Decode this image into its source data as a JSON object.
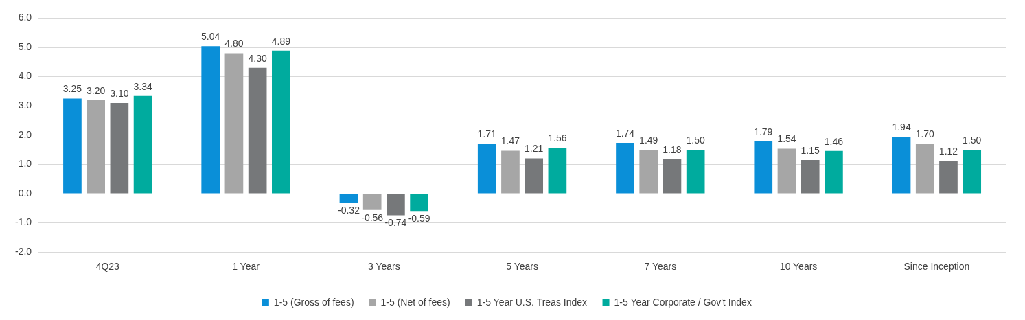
{
  "chart_data": {
    "type": "bar",
    "categories": [
      "4Q23",
      "1 Year",
      "3 Years",
      "5 Years",
      "7 Years",
      "10 Years",
      "Since Inception"
    ],
    "series": [
      {
        "name": "1-5 (Gross of fees)",
        "color": "#0a8fd8",
        "values": [
          3.25,
          5.04,
          -0.32,
          1.71,
          1.74,
          1.79,
          1.94
        ],
        "value_labels": [
          "3.25",
          "5.04",
          "-0.32",
          "1.71",
          "1.74",
          "1.79",
          "1.94"
        ]
      },
      {
        "name": "1-5 (Net of fees)",
        "color": "#a6a6a6",
        "values": [
          3.2,
          4.8,
          -0.56,
          1.47,
          1.49,
          1.54,
          1.7
        ],
        "value_labels": [
          "3.20",
          "4.80",
          "-0.56",
          "1.47",
          "1.49",
          "1.54",
          "1.70"
        ]
      },
      {
        "name": "1-5 Year U.S. Treas Index",
        "color": "#76787a",
        "values": [
          3.1,
          4.3,
          -0.74,
          1.21,
          1.18,
          1.15,
          1.12
        ],
        "value_labels": [
          "3.10",
          "4.30",
          "-0.74",
          "1.21",
          "1.18",
          "1.15",
          "1.12"
        ]
      },
      {
        "name": "1-5 Year Corporate / Gov't Index",
        "color": "#00ab9e",
        "values": [
          3.34,
          4.89,
          -0.59,
          1.56,
          1.5,
          1.46,
          1.5
        ],
        "value_labels": [
          "3.34",
          "4.89",
          "-0.59",
          "1.56",
          "1.50",
          "1.46",
          "1.50"
        ]
      }
    ],
    "ylim": [
      -2,
      6
    ],
    "yticks": [
      {
        "value": -2,
        "label": "-2.0"
      },
      {
        "value": -1,
        "label": "-1.0"
      },
      {
        "value": 0,
        "label": "0.0"
      },
      {
        "value": 1,
        "label": "1.0"
      },
      {
        "value": 2,
        "label": "2.0"
      },
      {
        "value": 3,
        "label": "3.0"
      },
      {
        "value": 4,
        "label": "4.0"
      },
      {
        "value": 5,
        "label": "5.0"
      },
      {
        "value": 6,
        "label": "6.0"
      }
    ],
    "grid": "y",
    "legend": "bottom"
  }
}
